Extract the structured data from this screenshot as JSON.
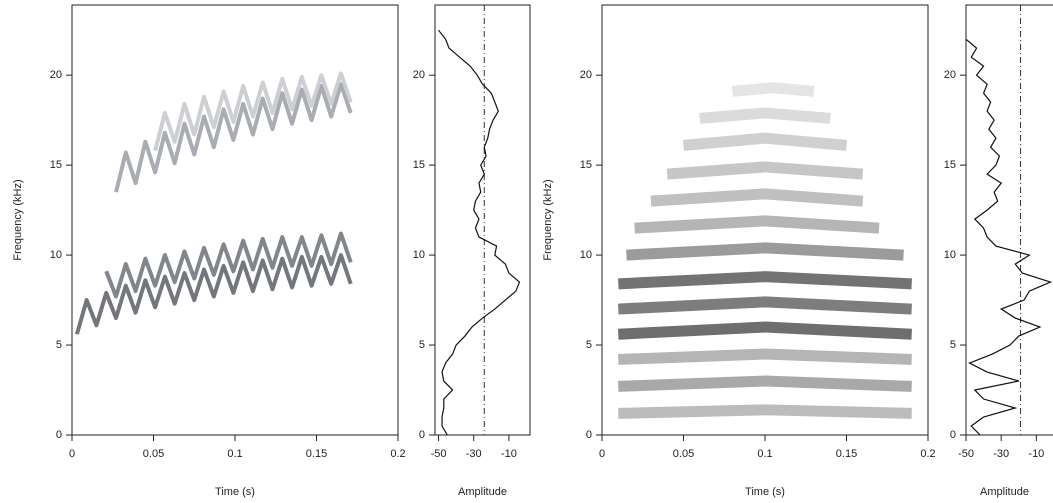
{
  "chart_data": [
    {
      "type": "spectrogram",
      "xlabel": "Time (s)",
      "ylabel": "Frequency (kHz)",
      "xlim": [
        0,
        0.2
      ],
      "ylim": [
        0,
        23.9
      ],
      "xticks": [
        0,
        0.05,
        0.1,
        0.15,
        0.2
      ],
      "yticks": [
        0,
        5,
        10,
        15,
        20
      ],
      "series": [
        {
          "color": "#5a5f66",
          "x": [
            0.003,
            0.009,
            0.015,
            0.021,
            0.027,
            0.033,
            0.039,
            0.045,
            0.051,
            0.057,
            0.063,
            0.069,
            0.075,
            0.081,
            0.087,
            0.093,
            0.099,
            0.105,
            0.111,
            0.117,
            0.123,
            0.129,
            0.135,
            0.141,
            0.147,
            0.153,
            0.159,
            0.165,
            0.171
          ],
          "values": [
            5.6,
            7.5,
            6.1,
            7.9,
            6.5,
            8.3,
            6.8,
            8.6,
            7.1,
            8.8,
            7.3,
            9.0,
            7.5,
            9.2,
            7.7,
            9.4,
            7.9,
            9.6,
            8.0,
            9.7,
            8.1,
            9.8,
            8.2,
            9.9,
            8.3,
            9.9,
            8.4,
            10.0,
            8.4
          ]
        },
        {
          "color": "#6b7078",
          "x": [
            0.021,
            0.027,
            0.033,
            0.039,
            0.045,
            0.051,
            0.057,
            0.063,
            0.069,
            0.075,
            0.081,
            0.087,
            0.093,
            0.099,
            0.105,
            0.111,
            0.117,
            0.123,
            0.129,
            0.135,
            0.141,
            0.147,
            0.153,
            0.159,
            0.165,
            0.171
          ],
          "values": [
            9.1,
            7.7,
            9.5,
            8.0,
            9.8,
            8.3,
            10.0,
            8.5,
            10.2,
            8.7,
            10.4,
            8.9,
            10.6,
            9.1,
            10.8,
            9.2,
            10.9,
            9.3,
            11.0,
            9.4,
            11.0,
            9.4,
            11.1,
            9.5,
            11.2,
            9.6
          ]
        },
        {
          "color": "#9a9ea4",
          "x": [
            0.027,
            0.033,
            0.039,
            0.045,
            0.051,
            0.057,
            0.063,
            0.069,
            0.075,
            0.081,
            0.087,
            0.093,
            0.099,
            0.105,
            0.111,
            0.117,
            0.123,
            0.129,
            0.135,
            0.141,
            0.147,
            0.153,
            0.159,
            0.165,
            0.171
          ],
          "values": [
            13.5,
            15.7,
            14.0,
            16.3,
            14.6,
            16.8,
            15.1,
            17.3,
            15.6,
            17.7,
            16.0,
            18.1,
            16.4,
            18.4,
            16.7,
            18.7,
            17.0,
            19.0,
            17.3,
            19.2,
            17.5,
            19.4,
            17.7,
            19.5,
            17.9
          ]
        },
        {
          "color": "#c4c7cb",
          "x": [
            0.051,
            0.057,
            0.063,
            0.069,
            0.075,
            0.081,
            0.087,
            0.093,
            0.099,
            0.105,
            0.111,
            0.117,
            0.123,
            0.129,
            0.135,
            0.141,
            0.147,
            0.153,
            0.159,
            0.165,
            0.171
          ],
          "values": [
            15.8,
            17.9,
            16.3,
            18.4,
            16.7,
            18.8,
            17.1,
            19.1,
            17.4,
            19.4,
            17.7,
            19.6,
            17.9,
            19.8,
            18.1,
            19.9,
            18.3,
            20.0,
            18.4,
            20.1,
            18.5
          ]
        }
      ]
    },
    {
      "type": "profile",
      "xlabel": "Amplitude",
      "xlim": [
        -52,
        2
      ],
      "ylim": [
        0,
        23.9
      ],
      "xticks": [
        -50,
        -30,
        -10
      ],
      "yticks": [
        0,
        5,
        10,
        15,
        20
      ],
      "threshold": -24,
      "y": [
        0,
        0.5,
        1,
        1.5,
        2,
        2.5,
        3,
        3.5,
        4,
        4.5,
        5,
        5.5,
        6,
        6.5,
        7,
        7.5,
        8,
        8.5,
        9,
        9.5,
        10,
        10.5,
        11,
        11.5,
        12,
        12.5,
        13,
        13.5,
        14,
        14.5,
        15,
        15.5,
        16,
        16.5,
        17,
        17.5,
        18,
        18.5,
        19,
        19.5,
        20,
        20.5,
        21,
        21.5,
        22,
        22.5
      ],
      "values": [
        -45,
        -48,
        -48,
        -47,
        -47,
        -42,
        -47,
        -48,
        -46,
        -42,
        -40,
        -35,
        -31,
        -25,
        -18,
        -12,
        -6,
        -4,
        -10,
        -12,
        -18,
        -17,
        -27,
        -29,
        -27,
        -30,
        -29,
        -26,
        -27,
        -24,
        -26,
        -23,
        -24,
        -22,
        -21,
        -19,
        -16,
        -18,
        -20,
        -25,
        -28,
        -32,
        -38,
        -44,
        -46,
        -50
      ]
    },
    {
      "type": "spectrogram",
      "xlabel": "Time (s)",
      "ylabel": "Frequency (kHz)",
      "xlim": [
        0,
        0.2
      ],
      "ylim": [
        0,
        23.9
      ],
      "xticks": [
        0,
        0.05,
        0.1,
        0.15,
        0.2
      ],
      "yticks": [
        0,
        5,
        10,
        15,
        20
      ],
      "series": [
        {
          "color": "#b0b0b0",
          "x": [
            0.01,
            0.1,
            0.19
          ],
          "values": [
            1.2,
            1.4,
            1.2
          ]
        },
        {
          "color": "#9a9a9a",
          "x": [
            0.01,
            0.1,
            0.19
          ],
          "values": [
            2.7,
            3.0,
            2.7
          ]
        },
        {
          "color": "#a8a8a8",
          "x": [
            0.01,
            0.1,
            0.19
          ],
          "values": [
            4.2,
            4.5,
            4.2
          ]
        },
        {
          "color": "#555555",
          "x": [
            0.01,
            0.1,
            0.19
          ],
          "values": [
            5.6,
            6.0,
            5.6
          ]
        },
        {
          "color": "#666666",
          "x": [
            0.01,
            0.1,
            0.19
          ],
          "values": [
            7.0,
            7.4,
            7.0
          ]
        },
        {
          "color": "#5a5a5a",
          "x": [
            0.01,
            0.1,
            0.19
          ],
          "values": [
            8.4,
            8.8,
            8.4
          ]
        },
        {
          "color": "#8a8a8a",
          "x": [
            0.015,
            0.1,
            0.185
          ],
          "values": [
            10.0,
            10.4,
            10.0
          ]
        },
        {
          "color": "#a8a8a8",
          "x": [
            0.02,
            0.1,
            0.17
          ],
          "values": [
            11.5,
            11.9,
            11.5
          ]
        },
        {
          "color": "#b5b5b5",
          "x": [
            0.03,
            0.1,
            0.16
          ],
          "values": [
            13.0,
            13.4,
            13.0
          ]
        },
        {
          "color": "#bcbcbc",
          "x": [
            0.04,
            0.1,
            0.16
          ],
          "values": [
            14.5,
            14.9,
            14.5
          ]
        },
        {
          "color": "#c8c8c8",
          "x": [
            0.05,
            0.1,
            0.15
          ],
          "values": [
            16.1,
            16.5,
            16.1
          ]
        },
        {
          "color": "#d5d5d5",
          "x": [
            0.06,
            0.1,
            0.14
          ],
          "values": [
            17.6,
            17.9,
            17.6
          ]
        },
        {
          "color": "#e0e0e0",
          "x": [
            0.08,
            0.105,
            0.13
          ],
          "values": [
            19.1,
            19.3,
            19.1
          ]
        }
      ]
    },
    {
      "type": "profile",
      "xlabel": "Amplitude",
      "xlim": [
        -50,
        4
      ],
      "ylim": [
        0,
        23.9
      ],
      "xticks": [
        -50,
        -30,
        -10
      ],
      "yticks": [
        0,
        5,
        10,
        15,
        20
      ],
      "threshold": -19,
      "y": [
        0,
        0.5,
        1,
        1.5,
        2,
        2.5,
        3,
        3.5,
        4,
        4.5,
        5,
        5.5,
        6,
        6.5,
        7,
        7.5,
        8,
        8.5,
        9,
        9.5,
        10,
        10.5,
        11,
        11.5,
        12,
        12.5,
        13,
        13.5,
        14,
        14.5,
        15,
        15.5,
        16,
        16.5,
        17,
        17.5,
        18,
        18.5,
        19,
        19.5,
        20,
        20.5,
        21,
        21.5,
        22
      ],
      "values": [
        -42,
        -47,
        -40,
        -22,
        -40,
        -45,
        -20,
        -38,
        -48,
        -35,
        -25,
        -20,
        -8,
        -22,
        -30,
        -17,
        -14,
        -2,
        -18,
        -22,
        -14,
        -33,
        -38,
        -40,
        -45,
        -38,
        -32,
        -34,
        -30,
        -38,
        -33,
        -31,
        -36,
        -33,
        -37,
        -34,
        -38,
        -36,
        -40,
        -38,
        -44,
        -40,
        -47,
        -44,
        -50
      ]
    }
  ]
}
